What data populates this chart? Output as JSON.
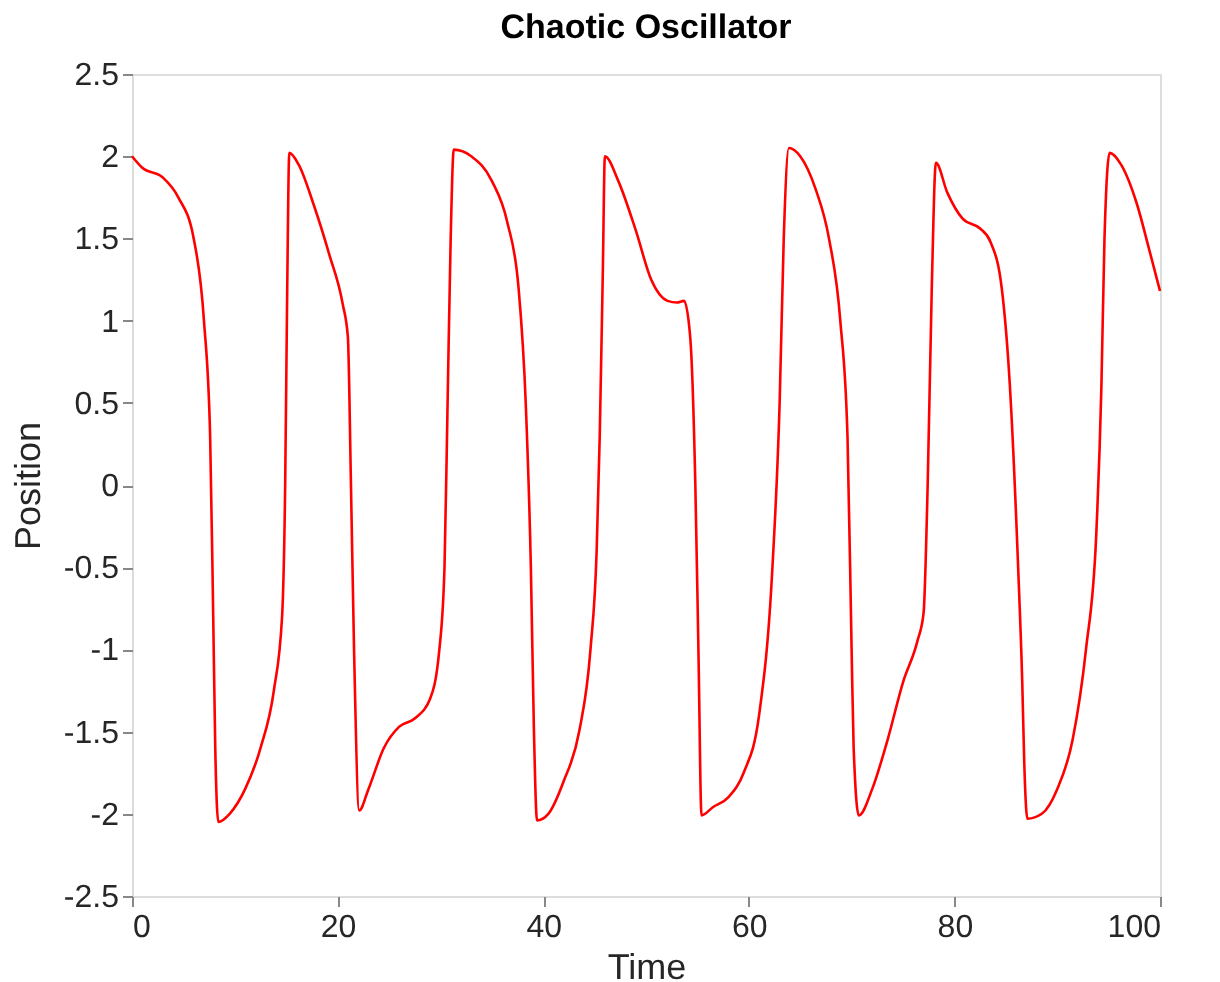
{
  "chart_data": {
    "type": "line",
    "title": "Chaotic Oscillator",
    "xlabel": "Time",
    "ylabel": "Position",
    "x": [
      0,
      1,
      3,
      4.5,
      6,
      7,
      7.6,
      7.9,
      8.1,
      8.4,
      9.5,
      11,
      12.5,
      13.8,
      14.6,
      14.9,
      15.1,
      15.3,
      16.2,
      17.7,
      19.2,
      20.5,
      21.0,
      21.3,
      21.6,
      22.1,
      23,
      24.5,
      26,
      27.5,
      29,
      29.9,
      30.4,
      30.7,
      31.0,
      31.3,
      33,
      35,
      36.5,
      37.6,
      38.3,
      38.8,
      39.1,
      39.4,
      40.5,
      42,
      43.5,
      44.6,
      45.2,
      45.5,
      45.8,
      46.0,
      47.3,
      49,
      50.5,
      52.1,
      53,
      53.7,
      54.3,
      54.8,
      55.1,
      55.4,
      56.5,
      58,
      59.5,
      61,
      62.3,
      63.0,
      63.4,
      63.9,
      65,
      66.5,
      67.8,
      68.9,
      69.6,
      70.0,
      70.2,
      70.7,
      72,
      73.5,
      75,
      76.4,
      77.0,
      77.4,
      77.8,
      78.2,
      79.3,
      80.8,
      82.5,
      83.5,
      84.6,
      85.4,
      86.2,
      86.6,
      86.8,
      87.1,
      88.5,
      90,
      91.5,
      92.8,
      93.8,
      94.3,
      94.6,
      95.1,
      96.2,
      97.7,
      99,
      100
    ],
    "series": [
      {
        "color": "#ff0000",
        "values": [
          2.0,
          1.93,
          1.87,
          1.75,
          1.5,
          1.0,
          0.3,
          -0.8,
          -1.6,
          -2.05,
          -2.0,
          -1.85,
          -1.6,
          -1.25,
          -0.8,
          0.0,
          1.2,
          2.02,
          1.95,
          1.7,
          1.4,
          1.1,
          0.9,
          0.0,
          -1.0,
          -1.98,
          -1.85,
          -1.6,
          -1.47,
          -1.42,
          -1.3,
          -1.0,
          -0.5,
          0.5,
          1.5,
          2.04,
          2.0,
          1.85,
          1.6,
          1.2,
          0.5,
          -0.5,
          -1.5,
          -2.04,
          -2.0,
          -1.8,
          -1.5,
          -1.0,
          -0.4,
          0.3,
          1.3,
          2.0,
          1.85,
          1.55,
          1.25,
          1.12,
          1.11,
          1.12,
          0.9,
          0.0,
          -1.0,
          -2.01,
          -1.96,
          -1.9,
          -1.75,
          -1.4,
          -0.5,
          0.5,
          1.5,
          2.05,
          2.0,
          1.8,
          1.5,
          1.0,
          0.3,
          -1.0,
          -1.6,
          -2.01,
          -1.85,
          -1.55,
          -1.2,
          -0.95,
          -0.78,
          0.0,
          1.2,
          1.96,
          1.78,
          1.62,
          1.56,
          1.48,
          1.2,
          0.6,
          -0.5,
          -1.2,
          -1.7,
          -2.03,
          -2.0,
          -1.85,
          -1.55,
          -1.0,
          -0.3,
          0.6,
          1.5,
          2.02,
          1.95,
          1.72,
          1.42,
          1.18
        ]
      }
    ],
    "xlim": [
      0,
      100
    ],
    "xticks": [
      0,
      20,
      40,
      60,
      80,
      100
    ],
    "ylim": [
      -2.5,
      2.5
    ],
    "yticks": [
      -2.5,
      -2,
      -1.5,
      -1,
      -0.5,
      0,
      0.5,
      1,
      1.5,
      2,
      2.5
    ],
    "grid": false,
    "legend": false,
    "marker": "none",
    "line_style": "solid"
  }
}
